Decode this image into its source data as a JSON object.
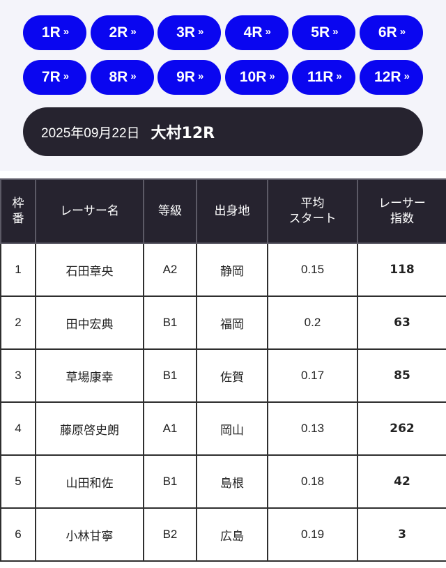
{
  "race_nav": [
    {
      "label": "1R",
      "chevron": "»"
    },
    {
      "label": "2R",
      "chevron": "»"
    },
    {
      "label": "3R",
      "chevron": "»"
    },
    {
      "label": "4R",
      "chevron": "»"
    },
    {
      "label": "5R",
      "chevron": "»"
    },
    {
      "label": "6R",
      "chevron": "»"
    },
    {
      "label": "7R",
      "chevron": "»"
    },
    {
      "label": "8R",
      "chevron": "»"
    },
    {
      "label": "9R",
      "chevron": "»"
    },
    {
      "label": "10R",
      "chevron": "»"
    },
    {
      "label": "11R",
      "chevron": "»"
    },
    {
      "label": "12R",
      "chevron": "»"
    }
  ],
  "race_header": {
    "date": "2025年09月22日",
    "venue_race": "大村12R"
  },
  "table": {
    "headers": {
      "waku": [
        "枠",
        "番"
      ],
      "name": "レーサー名",
      "grade": "等級",
      "hometown": "出身地",
      "avg_start": [
        "平均",
        "スタート"
      ],
      "index": [
        "レーサー",
        "指数"
      ]
    },
    "rows": [
      {
        "waku": "1",
        "name": "石田章央",
        "grade": "A2",
        "hometown": "静岡",
        "avg_start": "0.15",
        "index": "118"
      },
      {
        "waku": "2",
        "name": "田中宏典",
        "grade": "B1",
        "hometown": "福岡",
        "avg_start": "0.2",
        "index": "63"
      },
      {
        "waku": "3",
        "name": "草場康幸",
        "grade": "B1",
        "hometown": "佐賀",
        "avg_start": "0.17",
        "index": "85"
      },
      {
        "waku": "4",
        "name": "藤原啓史朗",
        "grade": "A1",
        "hometown": "岡山",
        "avg_start": "0.13",
        "index": "262"
      },
      {
        "waku": "5",
        "name": "山田和佐",
        "grade": "B1",
        "hometown": "島根",
        "avg_start": "0.18",
        "index": "42"
      },
      {
        "waku": "6",
        "name": "小林甘寧",
        "grade": "B2",
        "hometown": "広島",
        "avg_start": "0.19",
        "index": "3"
      }
    ]
  },
  "colors": {
    "nav_button": "#0a06f0",
    "header_bg": "#26232f",
    "waku": [
      "#ececec",
      "#4b4b4b",
      "#de4b47",
      "#4f7fcd",
      "#ecee7e",
      "#5aa856"
    ]
  },
  "icons": {
    "chevron": "double-chevron-right-icon"
  }
}
